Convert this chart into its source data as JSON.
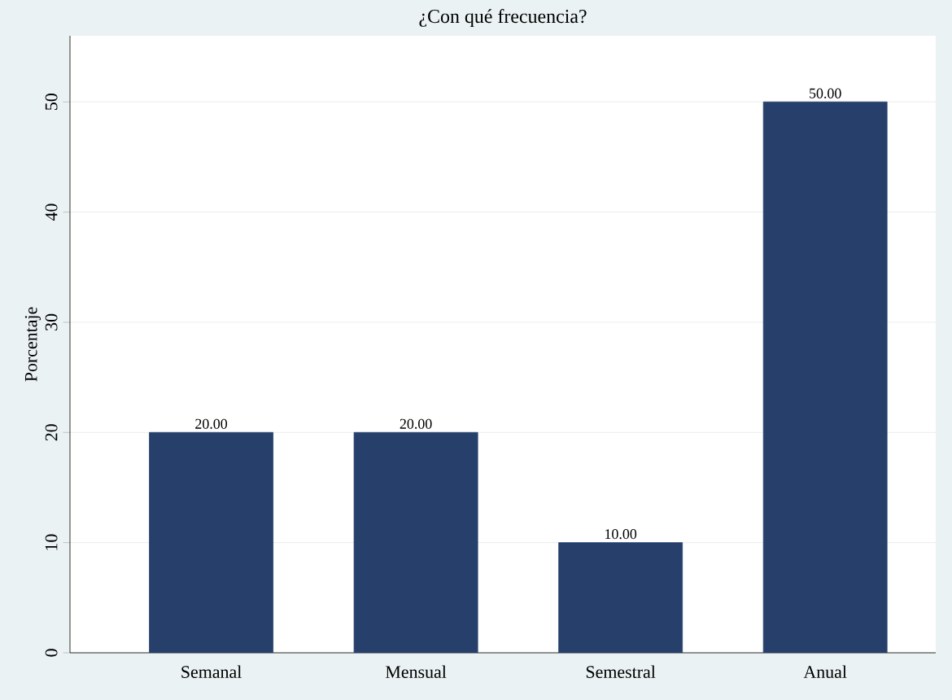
{
  "chart_data": {
    "type": "bar",
    "title": "¿Con qué frecuencia?",
    "ylabel": "Porcentaje",
    "categories": [
      "Semanal",
      "Mensual",
      "Semestral",
      "Anual"
    ],
    "values": [
      20,
      20,
      10,
      50
    ],
    "value_labels": [
      "20.00",
      "20.00",
      "10.00",
      "50.00"
    ],
    "color": "#26406b",
    "ylim": [
      0,
      56
    ],
    "yticks": [
      0,
      10,
      20,
      30,
      40,
      50
    ],
    "grid": "y"
  }
}
